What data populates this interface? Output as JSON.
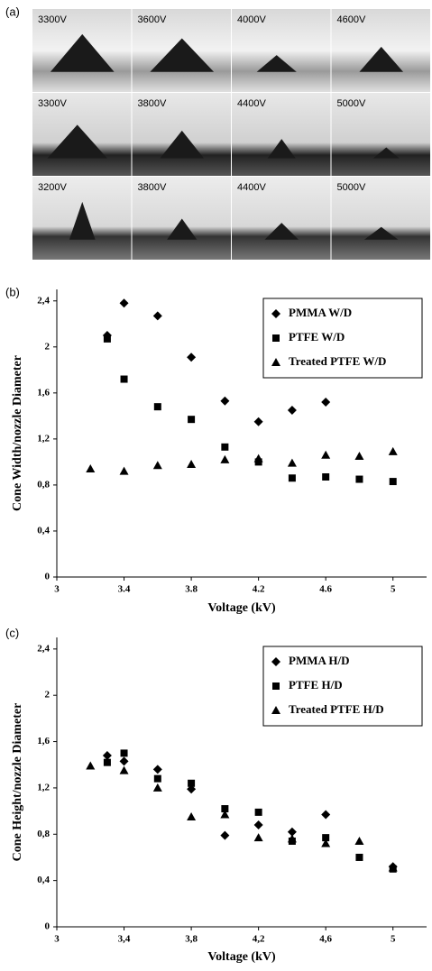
{
  "photos": {
    "panel_label": "(a)",
    "rows": [
      [
        "3300V",
        "3600V",
        "4000V",
        "4600V"
      ],
      [
        "3300V",
        "3800V",
        "4400V",
        "5000V"
      ],
      [
        "3200V",
        "3800V",
        "4400V",
        "5000V"
      ]
    ]
  },
  "chart_data": [
    {
      "type": "scatter",
      "panel_label": "(b)",
      "xlabel": "Voltage (kV)",
      "ylabel": "Cone Width/nozzle Diameter",
      "xlim": [
        3,
        5.2
      ],
      "ylim": [
        0,
        2.5
      ],
      "xticks": [
        3,
        3.4,
        3.8,
        4.2,
        4.6,
        5
      ],
      "yticks": [
        0,
        {
          "value": 0.4,
          "label": "0,4"
        },
        {
          "value": 0.8,
          "label": "0,8"
        },
        {
          "value": 1.2,
          "label": "1,2"
        },
        {
          "value": 1.6,
          "label": "1,6"
        },
        2,
        {
          "value": 2.4,
          "label": "2,4"
        }
      ],
      "series": [
        {
          "name": "PMMA W/D",
          "marker": "diamond",
          "color": "#000000",
          "x": [
            3.3,
            3.4,
            3.6,
            3.8,
            4.0,
            4.2,
            4.4,
            4.6
          ],
          "values": [
            2.1,
            2.38,
            2.27,
            1.91,
            1.53,
            1.35,
            1.45,
            1.52
          ]
        },
        {
          "name": "PTFE W/D",
          "marker": "square",
          "color": "#000000",
          "x": [
            3.3,
            3.4,
            3.6,
            3.8,
            4.0,
            4.2,
            4.4,
            4.6,
            4.8,
            5.0
          ],
          "values": [
            2.07,
            1.72,
            1.48,
            1.37,
            1.13,
            1.0,
            0.86,
            0.87,
            0.85,
            0.83
          ]
        },
        {
          "name": "Treated PTFE W/D",
          "marker": "triangle",
          "color": "#000000",
          "x": [
            3.2,
            3.4,
            3.6,
            3.8,
            4.0,
            4.2,
            4.4,
            4.6,
            4.8,
            5.0
          ],
          "values": [
            0.94,
            0.92,
            0.97,
            0.98,
            1.02,
            1.03,
            0.99,
            1.06,
            1.05,
            1.09
          ]
        }
      ]
    },
    {
      "type": "scatter",
      "panel_label": "(c)",
      "xlabel": "Voltage (kV)",
      "ylabel": "Cone Height/nozzle Diameter",
      "xlim": [
        3,
        5.2
      ],
      "ylim": [
        0,
        2.5
      ],
      "xticks": [
        3,
        {
          "value": 3.4,
          "label": "3,4"
        },
        {
          "value": 3.8,
          "label": "3,8"
        },
        {
          "value": 4.2,
          "label": "4,2"
        },
        {
          "value": 4.6,
          "label": "4,6"
        },
        5
      ],
      "yticks": [
        0,
        {
          "value": 0.4,
          "label": "0,4"
        },
        {
          "value": 0.8,
          "label": "0,8"
        },
        {
          "value": 1.2,
          "label": "1,2"
        },
        {
          "value": 1.6,
          "label": "1,6"
        },
        2,
        {
          "value": 2.4,
          "label": "2,4"
        }
      ],
      "series": [
        {
          "name": "PMMA H/D",
          "marker": "diamond",
          "color": "#000000",
          "x": [
            3.3,
            3.4,
            3.6,
            3.8,
            4.0,
            4.2,
            4.4,
            4.6,
            5.0
          ],
          "values": [
            1.48,
            1.43,
            1.36,
            1.19,
            0.79,
            0.88,
            0.82,
            0.97,
            0.52
          ]
        },
        {
          "name": "PTFE H/D",
          "marker": "square",
          "color": "#000000",
          "x": [
            3.3,
            3.4,
            3.6,
            3.8,
            4.0,
            4.2,
            4.4,
            4.6,
            4.8,
            5.0
          ],
          "values": [
            1.42,
            1.5,
            1.28,
            1.24,
            1.02,
            0.99,
            0.74,
            0.77,
            0.6,
            0.5
          ]
        },
        {
          "name": "Treated PTFE H/D",
          "marker": "triangle",
          "color": "#000000",
          "x": [
            3.2,
            3.4,
            3.6,
            3.8,
            4.0,
            4.2,
            4.4,
            4.6,
            4.8,
            5.0
          ],
          "values": [
            1.39,
            1.35,
            1.2,
            0.95,
            0.97,
            0.77,
            0.76,
            0.72,
            0.74,
            0.51
          ]
        }
      ]
    }
  ]
}
